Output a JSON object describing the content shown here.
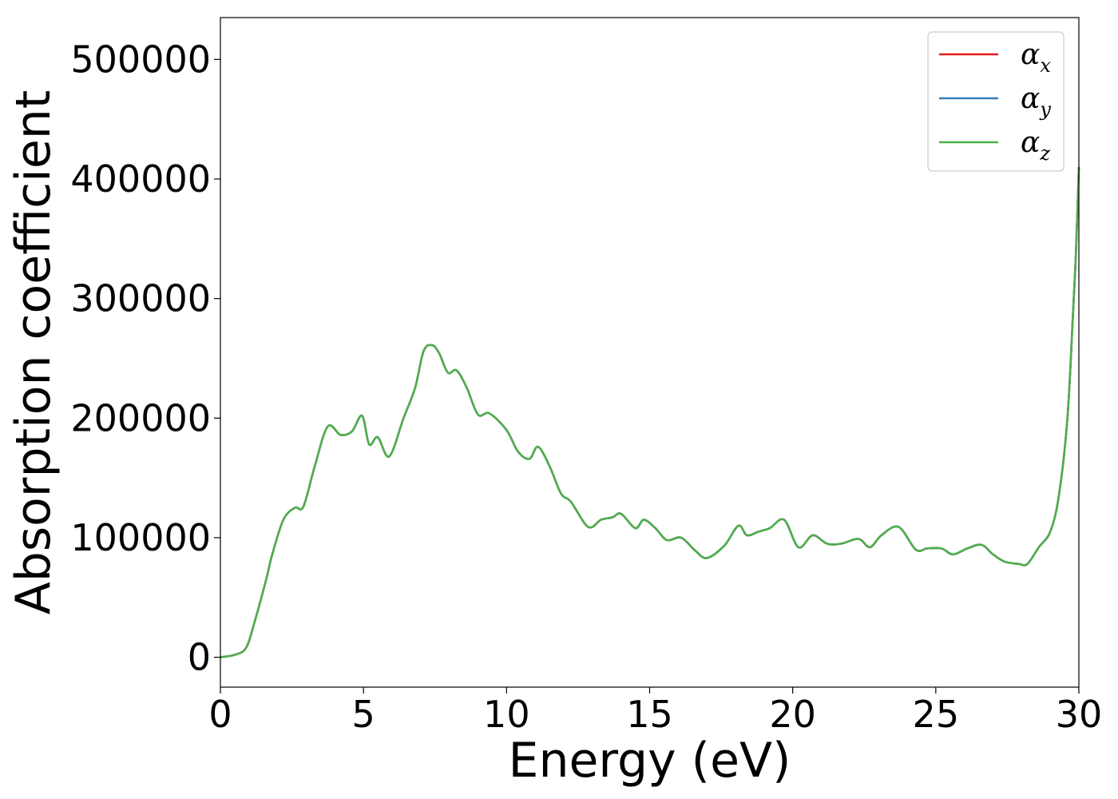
{
  "chart_data": {
    "type": "line",
    "title": "",
    "xlabel": "Energy (eV)",
    "ylabel": "Absorption coefficient",
    "xlim": [
      0,
      30
    ],
    "ylim": [
      -25000,
      535000
    ],
    "xticks": [
      0,
      5,
      10,
      15,
      20,
      25,
      30
    ],
    "yticks": [
      0,
      100000,
      200000,
      300000,
      400000,
      500000
    ],
    "xtick_labels": [
      "0",
      "5",
      "10",
      "15",
      "20",
      "25",
      "30"
    ],
    "ytick_labels": [
      "0",
      "100000",
      "200000",
      "300000",
      "400000",
      "500000"
    ],
    "grid": false,
    "legend": {
      "position": "top-right"
    },
    "x": [
      0,
      0.5,
      0.9,
      1.2,
      1.6,
      1.8,
      2.2,
      2.6,
      2.9,
      3.3,
      3.75,
      4.2,
      4.6,
      4.95,
      5.2,
      5.5,
      5.9,
      6.4,
      6.8,
      7.1,
      7.4,
      7.65,
      7.95,
      8.25,
      8.6,
      9.0,
      9.4,
      10.0,
      10.4,
      10.8,
      11.1,
      11.5,
      11.9,
      12.25,
      12.85,
      13.3,
      13.7,
      14.0,
      14.5,
      14.8,
      15.2,
      15.6,
      16.1,
      16.6,
      17.0,
      17.6,
      18.1,
      18.4,
      18.8,
      19.2,
      19.7,
      20.2,
      20.7,
      21.2,
      21.7,
      22.3,
      22.7,
      23.1,
      23.7,
      24.3,
      24.7,
      25.2,
      25.6,
      26.1,
      26.6,
      27.0,
      27.4,
      27.9,
      28.2,
      28.6,
      29.0,
      29.3,
      29.6,
      29.8,
      29.9,
      30.0
    ],
    "series": [
      {
        "name": "αx",
        "color": "#e41a1c",
        "values": [
          0,
          2000,
          8000,
          30000,
          65000,
          85000,
          115000,
          125000,
          126000,
          160000,
          193000,
          186000,
          189000,
          202000,
          178000,
          184000,
          168000,
          200000,
          225000,
          256000,
          261000,
          254000,
          238000,
          240000,
          226000,
          203000,
          204000,
          190000,
          172000,
          166000,
          176000,
          160000,
          137000,
          130000,
          109000,
          115000,
          117000,
          120000,
          108000,
          115000,
          108000,
          98000,
          100000,
          89000,
          83000,
          93000,
          110000,
          102000,
          105000,
          108000,
          115000,
          92000,
          102000,
          95000,
          95000,
          99000,
          92000,
          102000,
          109000,
          90000,
          91000,
          91000,
          86000,
          91000,
          94000,
          86000,
          80000,
          78000,
          78000,
          92000,
          105000,
          135000,
          200000,
          290000,
          340000,
          410000
        ]
      },
      {
        "name": "αy",
        "color": "#377eb8",
        "values": [
          0,
          2000,
          8000,
          30000,
          65000,
          85000,
          115000,
          125000,
          126000,
          160000,
          193000,
          186000,
          189000,
          202000,
          178000,
          184000,
          168000,
          200000,
          225000,
          256000,
          261000,
          254000,
          238000,
          240000,
          226000,
          203000,
          204000,
          190000,
          172000,
          166000,
          176000,
          160000,
          137000,
          130000,
          109000,
          115000,
          117000,
          120000,
          108000,
          115000,
          108000,
          98000,
          100000,
          89000,
          83000,
          93000,
          110000,
          102000,
          105000,
          108000,
          115000,
          92000,
          102000,
          95000,
          95000,
          99000,
          92000,
          102000,
          109000,
          90000,
          91000,
          91000,
          86000,
          91000,
          94000,
          86000,
          80000,
          78000,
          78000,
          92000,
          105000,
          135000,
          200000,
          290000,
          340000,
          410000
        ]
      },
      {
        "name": "αz",
        "color": "#4daf4a",
        "values": [
          0,
          2000,
          8000,
          30000,
          65000,
          85000,
          115000,
          125000,
          126000,
          160000,
          193000,
          186000,
          189000,
          202000,
          178000,
          184000,
          168000,
          200000,
          225000,
          256000,
          261000,
          254000,
          238000,
          240000,
          226000,
          203000,
          204000,
          190000,
          172000,
          166000,
          176000,
          160000,
          137000,
          130000,
          109000,
          115000,
          117000,
          120000,
          108000,
          115000,
          108000,
          98000,
          100000,
          89000,
          83000,
          93000,
          110000,
          102000,
          105000,
          108000,
          115000,
          92000,
          102000,
          95000,
          95000,
          99000,
          92000,
          102000,
          109000,
          90000,
          91000,
          91000,
          86000,
          91000,
          94000,
          86000,
          80000,
          78000,
          78000,
          92000,
          105000,
          135000,
          200000,
          290000,
          340000,
          410000
        ]
      }
    ],
    "legend_entries": [
      {
        "symbol": "α",
        "sub": "x"
      },
      {
        "symbol": "α",
        "sub": "y"
      },
      {
        "symbol": "α",
        "sub": "z"
      }
    ]
  }
}
